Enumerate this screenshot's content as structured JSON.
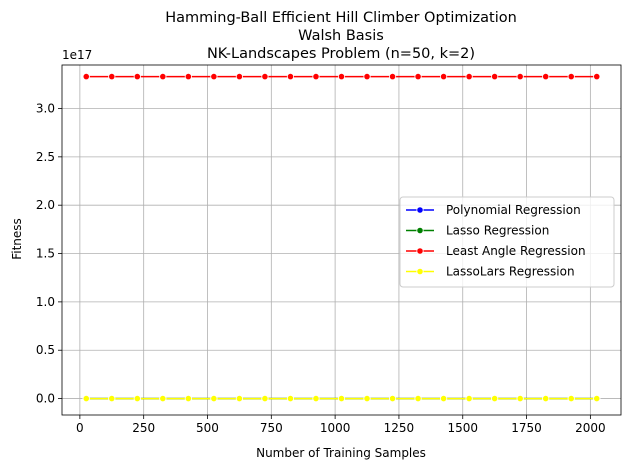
{
  "chart_data": {
    "type": "line",
    "title_lines": [
      "Hamming-Ball Efficient Hill Climber Optimization",
      "Walsh Basis",
      "NK-Landscapes Problem (n=50, k=2)"
    ],
    "xlabel": "Number of Training Samples",
    "ylabel": "Fitness",
    "y_offset_label": "1e17",
    "xlim": [
      -70,
      2120
    ],
    "ylim": [
      -0.17,
      3.45
    ],
    "y_scale_note": "values in units of 1e17",
    "x_ticks": [
      0,
      250,
      500,
      750,
      1000,
      1250,
      1500,
      1750,
      2000
    ],
    "x_tick_labels": [
      "0",
      "250",
      "500",
      "750",
      "1000",
      "1250",
      "1500",
      "1750",
      "2000"
    ],
    "y_ticks": [
      0.0,
      0.5,
      1.0,
      1.5,
      2.0,
      2.5,
      3.0
    ],
    "y_tick_labels": [
      "0.0",
      "0.5",
      "1.0",
      "1.5",
      "2.0",
      "2.5",
      "3.0"
    ],
    "grid": true,
    "legend_position": "center-right",
    "x": [
      25,
      125,
      225,
      325,
      425,
      525,
      625,
      725,
      825,
      925,
      1025,
      1125,
      1225,
      1325,
      1425,
      1525,
      1625,
      1725,
      1825,
      1925,
      2025
    ],
    "series": [
      {
        "name": "Polynomial Regression",
        "color": "#0000ff",
        "values": [
          0,
          0,
          0,
          0,
          0,
          0,
          0,
          0,
          0,
          0,
          0,
          0,
          0,
          0,
          0,
          0,
          0,
          0,
          0,
          0,
          0
        ]
      },
      {
        "name": "Lasso Regression",
        "color": "#008000",
        "values": [
          0,
          0,
          0,
          0,
          0,
          0,
          0,
          0,
          0,
          0,
          0,
          0,
          0,
          0,
          0,
          0,
          0,
          0,
          0,
          0,
          0
        ]
      },
      {
        "name": "Least Angle Regression",
        "color": "#ff0000",
        "values": [
          3.33,
          3.33,
          3.33,
          3.33,
          3.33,
          3.33,
          3.33,
          3.33,
          3.33,
          3.33,
          3.33,
          3.33,
          3.33,
          3.33,
          3.33,
          3.33,
          3.33,
          3.33,
          3.33,
          3.33,
          3.33
        ]
      },
      {
        "name": "LassoLars Regression",
        "color": "#ffff00",
        "values": [
          0,
          0,
          0,
          0,
          0,
          0,
          0,
          0,
          0,
          0,
          0,
          0,
          0,
          0,
          0,
          0,
          0,
          0,
          0,
          0,
          0
        ]
      }
    ]
  }
}
